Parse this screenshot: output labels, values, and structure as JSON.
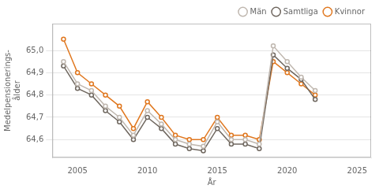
{
  "chart_data": {
    "type": "line",
    "x": [
      2004,
      2005,
      2006,
      2007,
      2008,
      2009,
      2010,
      2011,
      2012,
      2013,
      2014,
      2015,
      2016,
      2017,
      2018,
      2019,
      2020,
      2021,
      2022
    ],
    "series": [
      {
        "name": "Män",
        "color": "#c0b8b0",
        "values": [
          64.95,
          64.85,
          64.82,
          64.75,
          64.7,
          64.62,
          64.73,
          64.67,
          64.6,
          64.58,
          64.57,
          64.68,
          64.6,
          64.6,
          64.58,
          65.02,
          64.95,
          64.88,
          64.82
        ]
      },
      {
        "name": "Samtliga",
        "color": "#706860",
        "values": [
          64.93,
          64.83,
          64.8,
          64.73,
          64.68,
          64.6,
          64.7,
          64.65,
          64.58,
          64.56,
          64.55,
          64.65,
          64.58,
          64.58,
          64.56,
          64.98,
          64.92,
          64.87,
          64.78
        ]
      },
      {
        "name": "Kvinnor",
        "color": "#e07820",
        "values": [
          65.05,
          64.9,
          64.85,
          64.8,
          64.75,
          64.65,
          64.77,
          64.7,
          64.62,
          64.6,
          64.6,
          64.7,
          64.62,
          64.62,
          64.6,
          64.95,
          64.9,
          64.85,
          64.8
        ]
      }
    ],
    "xlabel": "År",
    "ylabel": "Medelpensionerings-\nålder",
    "xlim": [
      2003.2,
      2026.0
    ],
    "xticks": [
      2005,
      2010,
      2015,
      2020,
      2025
    ],
    "ylim": [
      64.52,
      65.12
    ],
    "yticks": [
      {
        "value": 64.6,
        "label": "64,6"
      },
      {
        "value": 64.7,
        "label": "64,7"
      },
      {
        "value": 64.8,
        "label": "64,8"
      },
      {
        "value": 64.9,
        "label": "64,9"
      },
      {
        "value": 65.0,
        "label": "65,0"
      }
    ],
    "grid": true,
    "legend": "upper right",
    "marker": "circle"
  }
}
